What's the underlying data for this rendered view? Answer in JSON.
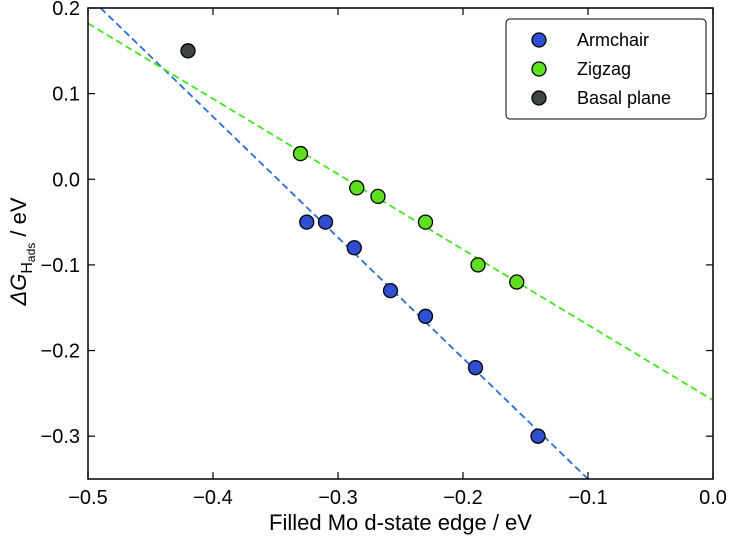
{
  "chart_data": {
    "type": "scatter",
    "title": "",
    "xlabel": "Filled Mo d-state edge / eV",
    "ylabel": {
      "prefix": "ΔG",
      "subscript": "H",
      "subsubscript": "ads",
      "suffix": " / eV"
    },
    "xlim": [
      -0.5,
      0.0
    ],
    "ylim": [
      -0.35,
      0.2
    ],
    "xticks": [
      -0.5,
      -0.4,
      -0.3,
      -0.2,
      -0.1,
      0.0
    ],
    "xtick_labels": [
      "−0.5",
      "−0.4",
      "−0.3",
      "−0.2",
      "−0.1",
      "0.0"
    ],
    "yticks": [
      0.2,
      0.1,
      0.0,
      -0.1,
      -0.2,
      -0.3
    ],
    "ytick_labels": [
      "0.2",
      "0.1",
      "0.0",
      "−0.1",
      "−0.2",
      "−0.3"
    ],
    "legend_position": "top-right",
    "series": [
      {
        "name": "Armchair",
        "color": "#2f4fd0",
        "x": [
          -0.325,
          -0.31,
          -0.287,
          -0.258,
          -0.23,
          -0.19,
          -0.14
        ],
        "y": [
          -0.05,
          -0.05,
          -0.08,
          -0.13,
          -0.16,
          -0.22,
          -0.3
        ],
        "fit": {
          "x": [
            -0.49,
            -0.1
          ],
          "y": [
            0.2,
            -0.35
          ],
          "color": "#2a6fd6"
        }
      },
      {
        "name": "Zigzag",
        "color": "#5ee01e",
        "x": [
          -0.33,
          -0.285,
          -0.268,
          -0.23,
          -0.188,
          -0.157
        ],
        "y": [
          0.03,
          -0.01,
          -0.02,
          -0.05,
          -0.1,
          -0.12
        ],
        "fit": {
          "x": [
            -0.5,
            0.0
          ],
          "y": [
            0.182,
            -0.258
          ],
          "color": "#42e81e"
        }
      },
      {
        "name": "Basal plane",
        "color": "#3c4545",
        "x": [
          -0.42
        ],
        "y": [
          0.15
        ],
        "fit": null
      }
    ]
  }
}
